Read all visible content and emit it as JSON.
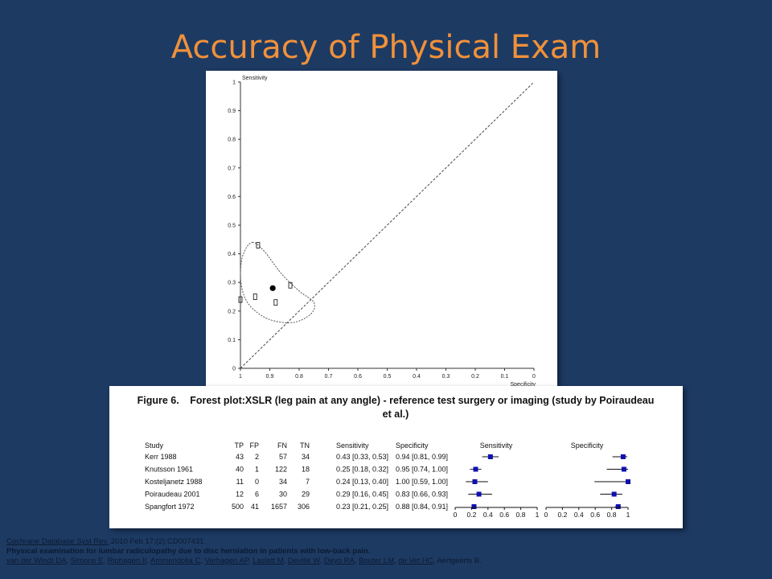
{
  "title": "Accuracy of Physical Exam",
  "sroc": {
    "chart_data": {
      "type": "scatter",
      "xlabel": "Specificity",
      "ylabel": "Sensitivity",
      "xlim": [
        1,
        0
      ],
      "ylim": [
        0,
        1
      ],
      "x_ticks": [
        "1",
        "0.9",
        "0.8",
        "0.7",
        "0.6",
        "0.5",
        "0.4",
        "0.3",
        "0.2",
        "0.1",
        "0"
      ],
      "y_ticks": [
        "0",
        "0.1",
        "0.2",
        "0.3",
        "0.4",
        "0.5",
        "0.6",
        "0.7",
        "0.8",
        "0.9",
        "1"
      ],
      "studies": [
        {
          "specificity": 0.94,
          "sensitivity": 0.43
        },
        {
          "specificity": 0.95,
          "sensitivity": 0.25
        },
        {
          "specificity": 1.0,
          "sensitivity": 0.24
        },
        {
          "specificity": 0.83,
          "sensitivity": 0.29
        },
        {
          "specificity": 0.88,
          "sensitivity": 0.23
        }
      ],
      "summary_point": {
        "specificity": 0.89,
        "sensitivity": 0.28
      },
      "confidence_region": [
        [
          0.96,
          0.44
        ],
        [
          0.92,
          0.41
        ],
        [
          0.86,
          0.33
        ],
        [
          0.8,
          0.27
        ],
        [
          0.75,
          0.23
        ],
        [
          0.76,
          0.19
        ],
        [
          0.82,
          0.16
        ],
        [
          0.9,
          0.17
        ],
        [
          0.96,
          0.21
        ],
        [
          0.99,
          0.26
        ],
        [
          1.0,
          0.33
        ],
        [
          0.99,
          0.4
        ]
      ],
      "diagonal": true
    }
  },
  "forest": {
    "figure_label": "Figure 6.",
    "caption_line1": "Forest plot:XSLR (leg pain at any angle) - reference test surgery or imaging (study by Poiraudeau",
    "caption_line2": "et al.)",
    "headers": {
      "study": "Study",
      "tp": "TP",
      "fp": "FP",
      "fn": "FN",
      "tn": "TN",
      "sensitivity": "Sensitivity",
      "specificity": "Specificity",
      "sens_plot": "Sensitivity",
      "spec_plot": "Specificity"
    },
    "axis_ticks": [
      "0",
      "0.2",
      "0.4",
      "0.6",
      "0.8",
      "1"
    ],
    "chart_data": {
      "type": "table",
      "rows": [
        {
          "study": "Kerr 1988",
          "tp": "43",
          "fp": "2",
          "fn": "57",
          "tn": "34",
          "sens_text": "0.43 [0.33, 0.53]",
          "spec_text": "0.94 [0.81, 0.99]",
          "sens": 0.43,
          "sens_lo": 0.33,
          "sens_hi": 0.53,
          "spec": 0.94,
          "spec_lo": 0.81,
          "spec_hi": 0.99
        },
        {
          "study": "Knutsson 1961",
          "tp": "40",
          "fp": "1",
          "fn": "122",
          "tn": "18",
          "sens_text": "0.25 [0.18, 0.32]",
          "spec_text": "0.95 [0.74, 1.00]",
          "sens": 0.25,
          "sens_lo": 0.18,
          "sens_hi": 0.32,
          "spec": 0.95,
          "spec_lo": 0.74,
          "spec_hi": 1.0
        },
        {
          "study": "Kosteljanetz 1988",
          "tp": "11",
          "fp": "0",
          "fn": "34",
          "tn": "7",
          "sens_text": "0.24 [0.13, 0.40]",
          "spec_text": "1.00 [0.59, 1.00]",
          "sens": 0.24,
          "sens_lo": 0.13,
          "sens_hi": 0.4,
          "spec": 1.0,
          "spec_lo": 0.59,
          "spec_hi": 1.0
        },
        {
          "study": "Poiraudeau 2001",
          "tp": "12",
          "fp": "6",
          "fn": "30",
          "tn": "29",
          "sens_text": "0.29 [0.16, 0.45]",
          "spec_text": "0.83 [0.66, 0.93]",
          "sens": 0.29,
          "sens_lo": 0.16,
          "sens_hi": 0.45,
          "spec": 0.83,
          "spec_lo": 0.66,
          "spec_hi": 0.93
        },
        {
          "study": "Spangfort 1972",
          "tp": "500",
          "fp": "41",
          "fn": "1657",
          "tn": "306",
          "sens_text": "0.23 [0.21, 0.25]",
          "spec_text": "0.88 [0.84, 0.91]",
          "sens": 0.23,
          "sens_lo": 0.21,
          "sens_hi": 0.25,
          "spec": 0.88,
          "spec_lo": 0.84,
          "spec_hi": 0.91
        }
      ]
    },
    "colors": {
      "marker": "#1010b0",
      "line": "#111111"
    }
  },
  "citation": {
    "journal_link": "Cochrane Database Syst Rev.",
    "journal_rest": " 2010 Feb 17;(2):CD007431.",
    "article_title": "Physical examination for lumbar radiculopathy due to disc herniation in patients with low-back pain.",
    "authors": [
      "van der Windt DA",
      "Simons E",
      "Riphagen II",
      "Ammendolia C",
      "Verhagen AP",
      "Laslett M",
      "Devillé W",
      "Deyo RA",
      "Bouter LM",
      "de Vet HC"
    ],
    "authors_tail": ", Aertgeerts B."
  }
}
